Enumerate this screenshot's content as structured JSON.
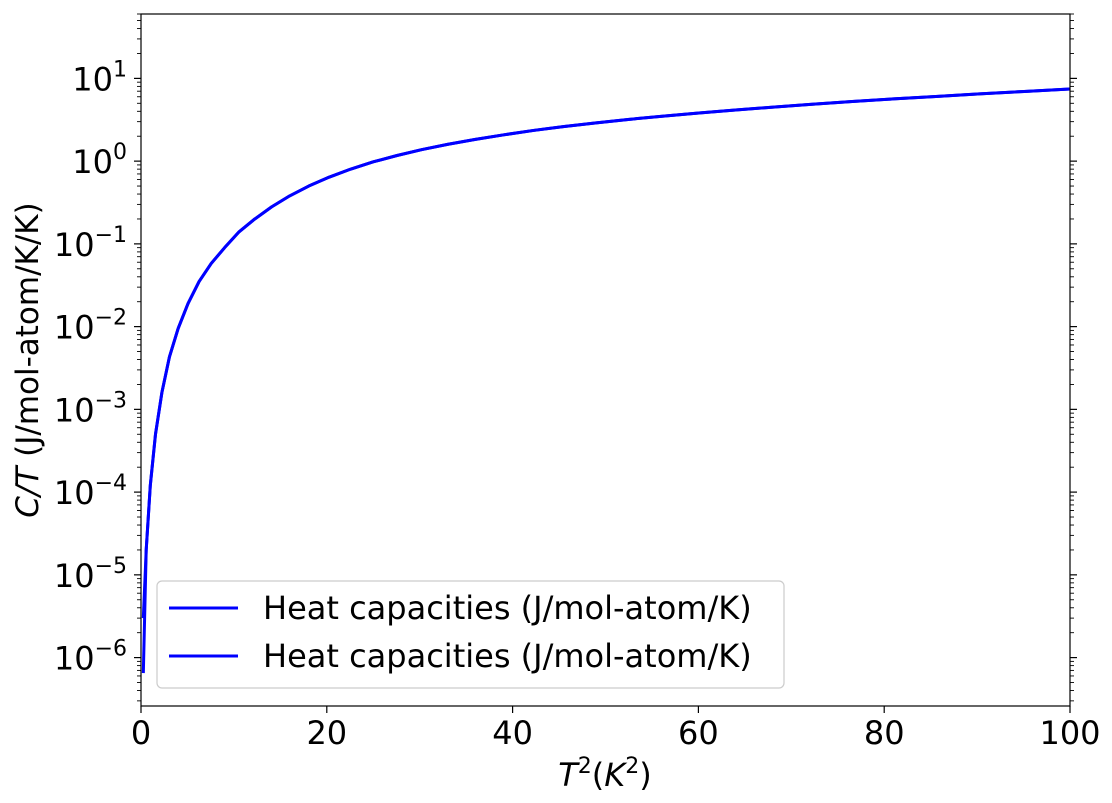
{
  "chart_data": {
    "type": "line",
    "title": "",
    "xlabel": {
      "base": "T",
      "sup": "2",
      "paren_base": "K",
      "paren_sup": "2"
    },
    "ylabel": {
      "italic": "C/T",
      "rest": " (J/mol-atom/K/K)"
    },
    "xscale": "linear",
    "yscale": "log",
    "xlim": [
      0,
      100
    ],
    "ylim": [
      2.6e-07,
      60
    ],
    "xticks": [
      0,
      20,
      40,
      60,
      80,
      100
    ],
    "xtick_labels": [
      "0",
      "20",
      "40",
      "60",
      "80",
      "100"
    ],
    "yticks": [
      {
        "value": 1e-06,
        "base": "10",
        "exp": "−6"
      },
      {
        "value": 1e-05,
        "base": "10",
        "exp": "−5"
      },
      {
        "value": 0.0001,
        "base": "10",
        "exp": "−4"
      },
      {
        "value": 0.001,
        "base": "10",
        "exp": "−3"
      },
      {
        "value": 0.01,
        "base": "10",
        "exp": "−2"
      },
      {
        "value": 0.1,
        "base": "10",
        "exp": "−1"
      },
      {
        "value": 1,
        "base": "10",
        "exp": "0"
      },
      {
        "value": 10,
        "base": "10",
        "exp": "1"
      }
    ],
    "grid": false,
    "legend_position": "lower-left",
    "series": [
      {
        "name": "Heat capacities (J/mol-atom/K)",
        "color": "#0000ff",
        "x": [
          0.25,
          0.56,
          1.0,
          1.56,
          2.25,
          3.06,
          4.0,
          5.06,
          6.25,
          7.56,
          9.0,
          10.56,
          12.25,
          14.06,
          16.0,
          18.06,
          20.25,
          22.56,
          25.0,
          27.56,
          30.25,
          33.06,
          36.0,
          39.06,
          42.25,
          45.56,
          49.0,
          52.56,
          56.25,
          60.06,
          64.0,
          68.06,
          72.25,
          76.56,
          81.0,
          85.56,
          90.25,
          95.06,
          100.0
        ],
        "y": [
          6.5e-07,
          2e-05,
          0.00012,
          0.0005,
          0.0016,
          0.0043,
          0.0095,
          0.019,
          0.035,
          0.058,
          0.09,
          0.14,
          0.2,
          0.28,
          0.38,
          0.5,
          0.64,
          0.8,
          0.98,
          1.17,
          1.38,
          1.6,
          1.83,
          2.08,
          2.35,
          2.62,
          2.9,
          3.2,
          3.5,
          3.82,
          4.15,
          4.5,
          4.87,
          5.25,
          5.65,
          6.05,
          6.5,
          6.95,
          7.45
        ]
      },
      {
        "name": "Heat capacities (J/mol-atom/K)",
        "color": "#0000ff",
        "x": [
          0.25,
          0.56,
          1.0,
          1.56,
          2.25,
          3.06,
          4.0,
          5.06,
          6.25,
          7.56,
          9.0,
          10.56,
          12.25,
          14.06,
          16.0,
          18.06,
          20.25,
          22.56,
          25.0,
          27.56,
          30.25,
          33.06,
          36.0,
          39.06,
          42.25,
          45.56,
          49.0,
          52.56,
          56.25,
          60.06,
          64.0,
          68.06,
          72.25,
          76.56,
          81.0,
          85.56,
          90.25,
          95.06,
          100.0
        ],
        "y": [
          3e-06,
          2e-05,
          0.00012,
          0.0005,
          0.0016,
          0.0043,
          0.0095,
          0.019,
          0.035,
          0.058,
          0.09,
          0.14,
          0.2,
          0.28,
          0.38,
          0.5,
          0.64,
          0.8,
          0.98,
          1.17,
          1.38,
          1.6,
          1.83,
          2.08,
          2.35,
          2.62,
          2.9,
          3.2,
          3.5,
          3.82,
          4.15,
          4.5,
          4.87,
          5.25,
          5.65,
          6.05,
          6.5,
          6.95,
          7.45
        ]
      }
    ]
  }
}
